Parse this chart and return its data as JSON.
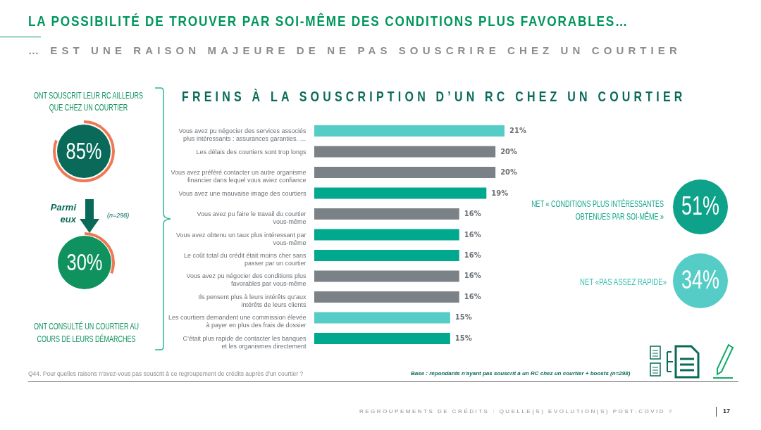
{
  "chart_data": {
    "type": "bar",
    "orientation": "horizontal",
    "title": "LA POSSIBILITÉ DE TROUVER PAR SOI-MÊME DES CONDITIONS PLUS FAVORABLES…",
    "subtitle": "… EST UNE RAISON MAJEURE DE NE PAS SOUSCRIRE CHEZ UN COURTIER",
    "categories": [
      "Vous avez pu négocier des services associés plus intéressants : assurances garanties. …",
      "Les délais des courtiers sont trop longs",
      "Vous avez préféré contacter un autre organisme financier dans lequel vous aviez confiance",
      "Vous avez une mauvaise image des courtiers",
      "Vous avez pu faire le travail du courtier vous-même",
      "Vous avez obtenu un taux plus intéressant par vous-même",
      "Le coût total du crédit était moins cher sans passer par un courtier",
      "Vous avez pu négocier des conditions plus favorables par vous-même",
      "Ils pensent plus à leurs intérêts qu’aux intérêts de leurs clients",
      "Les courtiers demandent une commission élevée à payer en plus des frais de dossier",
      "C’était plus rapide de contacter les banques et les organismes directement"
    ],
    "values": [
      21,
      20,
      20,
      19,
      16,
      16,
      16,
      16,
      16,
      15,
      15
    ],
    "colors": [
      "#55cdc6",
      "#7a8288",
      "#7a8288",
      "#00a88e",
      "#7a8288",
      "#00a88e",
      "#00a88e",
      "#7a8288",
      "#7a8288",
      "#55cdc6",
      "#00a88e"
    ],
    "value_labels": [
      "21%",
      "20%",
      "20%",
      "19%",
      "16%",
      "16%",
      "16%",
      "16%",
      "16%",
      "15%",
      "15%"
    ],
    "annotations": [
      "FREINS À LA SOUSCRIPTION D’UN RC CHEZ UN COURTIER",
      "ONT SOUSCRIT LEUR RC AILLEURS QUE CHEZ UN COURTIER",
      "85%",
      "Parmi eux",
      "(n=298)",
      "30%",
      "ONT CONSULTÉ UN COURTIER AU COURS DE LEURS DÉMARCHES",
      "NET « CONDITIONS PLUS INTÉRESSANTES OBTENUES PAR SOI-MÊME »",
      "51%",
      "NET «PAS ASSEZ RAPIDE»",
      "34%",
      "Q44. Pour quelles raisons n'avez-vous pas souscrit à ce regroupement de crédits auprès d'un courtier ?",
      "Base : répondants n'ayant pas souscrit à un RC chez un courtier + boosts (n=298)",
      "REGROUPEMENTS DE CRÉDITS : QUELLE(S) EVOLUTION(S) POST-COVID ?",
      "17"
    ],
    "grid": false
  }
}
